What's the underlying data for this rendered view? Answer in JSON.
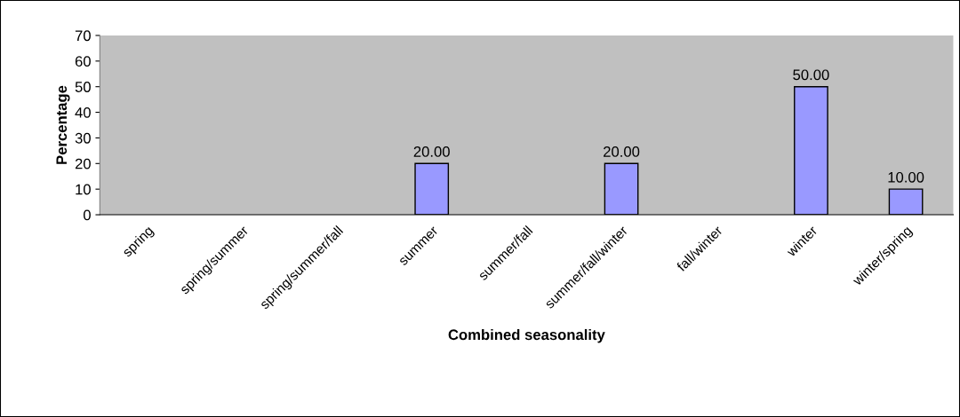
{
  "chart_data": {
    "type": "bar",
    "xlabel": "Combined seasonality",
    "ylabel": "Percentage",
    "categories": [
      "spring",
      "spring/summer",
      "spring/summer/fall",
      "summer",
      "summer/fall",
      "summer/fall/winter",
      "fall/winter",
      "winter",
      "winter/spring"
    ],
    "values": [
      0,
      0,
      0,
      20,
      0,
      20,
      0,
      50,
      10
    ],
    "value_labels": [
      null,
      null,
      null,
      "20.00",
      null,
      "20.00",
      null,
      "50.00",
      "10.00"
    ],
    "color": "#9999ff",
    "ylim": [
      0,
      70
    ],
    "yticks": [
      0,
      10,
      20,
      30,
      40,
      50,
      60,
      70
    ],
    "grid": false,
    "legend": false
  }
}
